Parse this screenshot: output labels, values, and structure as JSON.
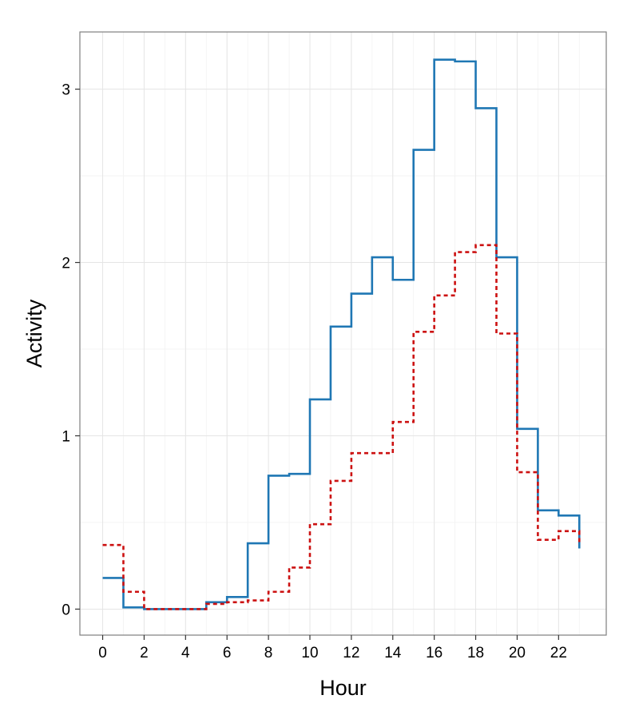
{
  "chart_data": {
    "type": "line",
    "step": true,
    "xlabel": "Hour",
    "ylabel": "Activity",
    "xlim": [
      -1.1,
      24.3
    ],
    "ylim": [
      -0.15,
      3.33
    ],
    "x_ticks": [
      0,
      2,
      4,
      6,
      8,
      10,
      12,
      14,
      16,
      18,
      20,
      22
    ],
    "y_ticks": [
      0,
      1,
      2,
      3
    ],
    "grid": true,
    "legend": "none",
    "x": [
      0,
      1,
      2,
      3,
      4,
      5,
      6,
      7,
      8,
      9,
      10,
      11,
      12,
      13,
      14,
      15,
      16,
      17,
      18,
      19,
      20,
      21,
      22,
      23
    ],
    "series": [
      {
        "color": "#1f77b4",
        "dash": "solid",
        "values": [
          0.18,
          0.01,
          0.0,
          0.0,
          0.0,
          0.04,
          0.07,
          0.38,
          0.77,
          0.78,
          1.21,
          1.63,
          1.82,
          2.03,
          1.9,
          2.65,
          3.17,
          3.16,
          2.89,
          2.03,
          1.04,
          0.57,
          0.54,
          0.35
        ]
      },
      {
        "color": "#cc1111",
        "dash": "dashed",
        "values": [
          0.37,
          0.1,
          0.0,
          0.0,
          0.0,
          0.03,
          0.04,
          0.05,
          0.1,
          0.24,
          0.49,
          0.74,
          0.9,
          0.9,
          1.08,
          1.6,
          1.81,
          2.06,
          2.1,
          1.59,
          0.79,
          0.4,
          0.45,
          0.37
        ]
      }
    ]
  }
}
